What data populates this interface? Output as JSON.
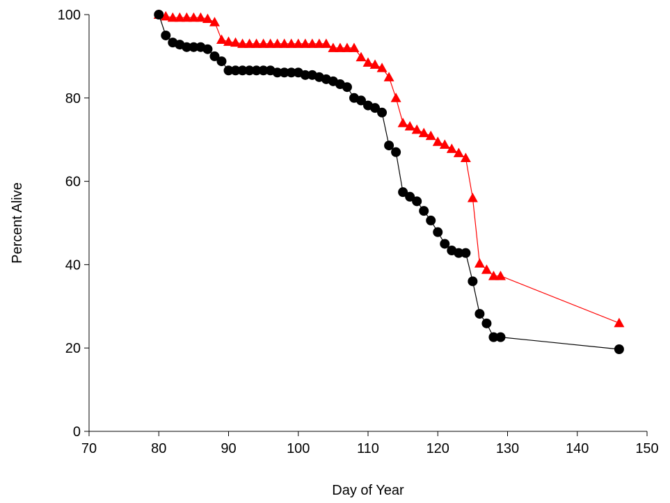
{
  "chart_data": {
    "type": "line",
    "title": "",
    "xlabel": "Day of Year",
    "ylabel": "Percent Alive",
    "xlim": [
      70,
      150
    ],
    "ylim": [
      0,
      100
    ],
    "xticks": [
      70,
      80,
      90,
      100,
      110,
      120,
      130,
      140,
      150
    ],
    "yticks": [
      0,
      20,
      40,
      60,
      80,
      100
    ],
    "grid": false,
    "legend": "none",
    "series": [
      {
        "marker": "triangle",
        "color": "#ff0000",
        "x": [
          80,
          81,
          82,
          83,
          84,
          85,
          86,
          87,
          88,
          89,
          90,
          91,
          92,
          93,
          94,
          95,
          96,
          97,
          98,
          99,
          100,
          101,
          102,
          103,
          104,
          105,
          106,
          107,
          108,
          109,
          110,
          111,
          112,
          113,
          114,
          115,
          116,
          117,
          118,
          119,
          120,
          121,
          122,
          123,
          124,
          125,
          126,
          127,
          128,
          129,
          146
        ],
        "y": [
          100,
          99.6,
          99.3,
          99.3,
          99.3,
          99.3,
          99.3,
          99,
          98.2,
          94,
          93.5,
          93.3,
          93,
          93,
          93,
          93,
          93,
          93,
          93,
          93,
          93,
          93,
          93,
          93,
          93,
          92,
          92,
          92,
          92,
          89.8,
          88.5,
          88,
          87.2,
          85,
          80,
          74,
          73.2,
          72.4,
          71.6,
          70.9,
          69.5,
          68.8,
          67.8,
          66.8,
          65.6,
          56,
          40.3,
          38.8,
          37.3,
          37.3,
          26
        ]
      },
      {
        "marker": "circle",
        "color": "#000000",
        "x": [
          80,
          81,
          82,
          83,
          84,
          85,
          86,
          87,
          88,
          89,
          90,
          91,
          92,
          93,
          94,
          95,
          96,
          97,
          98,
          99,
          100,
          101,
          102,
          103,
          104,
          105,
          106,
          107,
          108,
          109,
          110,
          111,
          112,
          113,
          114,
          115,
          116,
          117,
          118,
          119,
          120,
          121,
          122,
          123,
          124,
          125,
          126,
          127,
          128,
          129,
          146
        ],
        "y": [
          100,
          95,
          93.3,
          92.8,
          92.2,
          92.2,
          92.2,
          91.7,
          90,
          88.8,
          86.6,
          86.6,
          86.6,
          86.6,
          86.6,
          86.6,
          86.6,
          86.1,
          86.1,
          86.1,
          86.1,
          85.5,
          85.5,
          85,
          84.5,
          84,
          83.3,
          82.6,
          80,
          79.4,
          78.2,
          77.6,
          76.5,
          68.6,
          67,
          57.4,
          56.3,
          55.2,
          52.9,
          50.6,
          47.8,
          45,
          43.4,
          42.8,
          42.8,
          36,
          28.2,
          25.9,
          22.6,
          22.6,
          19.7
        ]
      }
    ]
  }
}
